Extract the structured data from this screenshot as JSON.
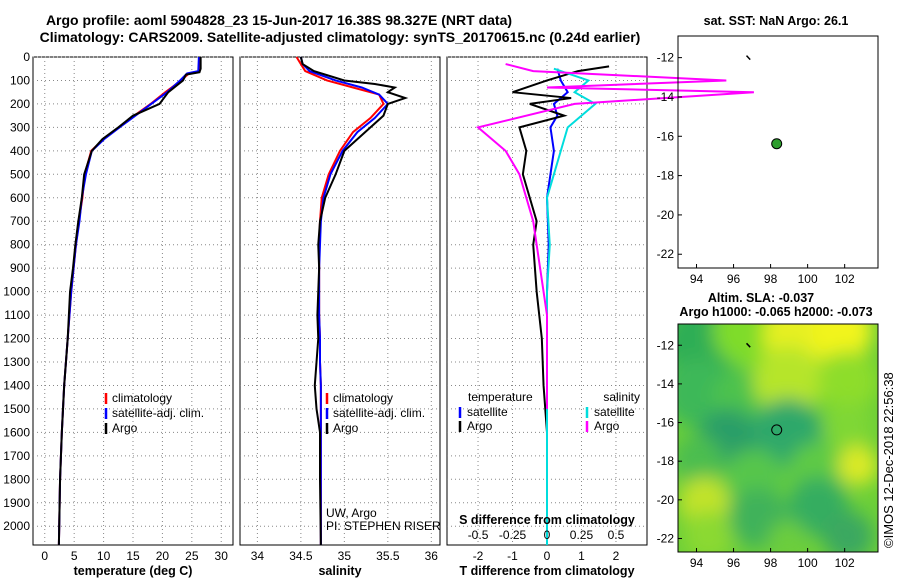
{
  "header": {
    "title_line1": "Argo profile: aoml 5904828_23 15-Jun-2017 16.38S 98.327E (NRT data)",
    "title_line2": "Climatology: CARS2009. Satellite-adjusted climatology: synTS_20170615.nc (0.24d earlier)"
  },
  "depth_ticks": [
    "0",
    "100",
    "200",
    "300",
    "400",
    "500",
    "600",
    "700",
    "800",
    "900",
    "1000",
    "1100",
    "1200",
    "1300",
    "1400",
    "1500",
    "1600",
    "1700",
    "1800",
    "1900",
    "2000"
  ],
  "colors": {
    "climatology": "#ff0000",
    "satellite": "#0000ff",
    "argo": "#000000",
    "sat_sal": "#00dddd",
    "argo_sal": "#ff00ff",
    "marker": "#2e9e2e"
  },
  "chart_data": [
    {
      "type": "line",
      "id": "temperature",
      "xlabel": "temperature (deg C)",
      "xticks": [
        "0",
        "5",
        "10",
        "15",
        "20",
        "25",
        "30"
      ],
      "xlim": [
        -2,
        32
      ],
      "ylim": [
        2080,
        0
      ],
      "grid": true,
      "legend": {
        "placement": "bottom-right",
        "items": [
          {
            "label": "climatology",
            "color": "#ff0000"
          },
          {
            "label": "satellite-adj. clim.",
            "color": "#0000ff"
          },
          {
            "label": "Argo",
            "color": "#000000"
          }
        ]
      },
      "series": [
        {
          "name": "climatology",
          "color": "#ff0000",
          "x": [
            26.4,
            26.3,
            24.5,
            23.2,
            20.5,
            18.0,
            15.2,
            12.6,
            10.0,
            7.9,
            6.8,
            6.4,
            5.8,
            5.3,
            4.9,
            4.5,
            4.2,
            3.9,
            3.6,
            3.3,
            3.1,
            2.9,
            2.6,
            2.4
          ],
          "y": [
            0,
            60,
            70,
            100,
            150,
            200,
            250,
            300,
            350,
            400,
            500,
            600,
            700,
            800,
            900,
            1000,
            1100,
            1200,
            1300,
            1400,
            1500,
            1600,
            1800,
            2080
          ]
        },
        {
          "name": "satellite-adj. clim.",
          "color": "#0000ff",
          "x": [
            26.2,
            26.1,
            24.2,
            23.0,
            20.8,
            18.1,
            15.4,
            12.7,
            10.1,
            8.0,
            7.0,
            6.3,
            5.9,
            5.3,
            4.9,
            4.5,
            4.2,
            3.9,
            3.6,
            3.3,
            3.1,
            2.9,
            2.6,
            2.4
          ],
          "y": [
            0,
            60,
            70,
            100,
            150,
            200,
            250,
            300,
            350,
            400,
            500,
            600,
            700,
            800,
            900,
            1000,
            1100,
            1200,
            1300,
            1400,
            1500,
            1600,
            1800,
            2080
          ]
        },
        {
          "name": "Argo",
          "color": "#000000",
          "x": [
            26.5,
            26.5,
            26.3,
            24.0,
            23.5,
            21.0,
            19.5,
            15.0,
            12.5,
            9.8,
            8.0,
            6.7,
            6.3,
            5.7,
            5.2,
            4.8,
            4.3,
            4.1,
            3.9,
            3.6,
            3.3,
            3.1,
            2.9,
            2.6,
            2.4
          ],
          "y": [
            0,
            50,
            65,
            75,
            100,
            150,
            200,
            250,
            300,
            350,
            400,
            500,
            600,
            700,
            800,
            900,
            1000,
            1100,
            1200,
            1300,
            1400,
            1500,
            1600,
            1800,
            2080
          ]
        }
      ]
    },
    {
      "type": "line",
      "id": "salinity",
      "xlabel": "salinity",
      "xticks": [
        "34",
        "34.5",
        "35",
        "35.5",
        "36"
      ],
      "xlim": [
        33.8,
        36.1
      ],
      "ylim": [
        2080,
        0
      ],
      "grid": true,
      "legend": {
        "placement": "bottom-right",
        "items": [
          {
            "label": "climatology",
            "color": "#ff0000"
          },
          {
            "label": "satellite-adj. clim.",
            "color": "#0000ff"
          },
          {
            "label": "Argo",
            "color": "#000000"
          }
        ]
      },
      "annotations": [
        "UW, Argo",
        "PI: STEPHEN RISER"
      ],
      "series": [
        {
          "name": "climatology",
          "color": "#ff0000",
          "x": [
            34.45,
            34.5,
            34.55,
            34.8,
            35.1,
            35.4,
            35.45,
            35.3,
            35.1,
            34.95,
            34.82,
            34.74,
            34.72,
            34.71,
            34.71,
            34.71,
            34.71,
            34.72,
            34.72,
            34.73,
            34.73,
            34.73,
            34.73,
            34.73
          ],
          "y": [
            0,
            30,
            60,
            100,
            130,
            160,
            200,
            260,
            320,
            400,
            500,
            600,
            700,
            800,
            900,
            1000,
            1100,
            1200,
            1300,
            1400,
            1500,
            1600,
            1800,
            2080
          ]
        },
        {
          "name": "satellite-adj. clim.",
          "color": "#0000ff",
          "x": [
            34.5,
            34.52,
            34.6,
            34.9,
            35.2,
            35.4,
            35.5,
            35.35,
            35.15,
            34.98,
            34.84,
            34.76,
            34.73,
            34.72,
            34.71,
            34.71,
            34.71,
            34.72,
            34.72,
            34.73,
            34.73,
            34.73,
            34.73,
            34.73
          ],
          "y": [
            0,
            30,
            60,
            100,
            130,
            160,
            200,
            260,
            320,
            400,
            500,
            600,
            700,
            800,
            900,
            1000,
            1100,
            1200,
            1300,
            1400,
            1500,
            1600,
            1800,
            2080
          ]
        },
        {
          "name": "Argo",
          "color": "#000000",
          "x": [
            34.5,
            34.52,
            34.65,
            35.0,
            35.35,
            35.58,
            35.5,
            35.7,
            35.5,
            35.45,
            35.3,
            35.0,
            34.9,
            34.78,
            34.72,
            34.7,
            34.71,
            34.7,
            34.69,
            34.7,
            34.68,
            34.66,
            34.68,
            34.72,
            34.72,
            34.73
          ],
          "y": [
            0,
            30,
            60,
            100,
            115,
            130,
            150,
            175,
            200,
            250,
            300,
            400,
            500,
            600,
            700,
            800,
            900,
            1000,
            1100,
            1200,
            1300,
            1400,
            1500,
            1600,
            1800,
            2080
          ]
        }
      ]
    },
    {
      "type": "line",
      "id": "differences",
      "xlabel": "T difference from climatology",
      "annotation_top_axis": "S difference from climatology",
      "xticks_T": [
        "-2",
        "-1",
        "0",
        "1",
        "2"
      ],
      "xticks_S": [
        "-0.5",
        "-0.25",
        "0",
        "0.25",
        "0.5"
      ],
      "xlim": [
        -2.9,
        2.9
      ],
      "ylim": [
        2080,
        0
      ],
      "grid": true,
      "legend_left": {
        "title": "temperature",
        "items": [
          {
            "label": "satellite",
            "color": "#0000ff"
          },
          {
            "label": "Argo",
            "color": "#000000"
          }
        ]
      },
      "legend_right": {
        "title": "salinity",
        "items": [
          {
            "label": "satellite",
            "color": "#00dddd"
          },
          {
            "label": "Argo",
            "color": "#ff00ff"
          }
        ]
      },
      "series": [
        {
          "name": "T satellite",
          "color": "#0000ff",
          "x": [
            0.3,
            0.4,
            0.6,
            0.2,
            0.3,
            0.1,
            0.2,
            0.1,
            0.0,
            0.05,
            0.0,
            0.0,
            0.0,
            0.0,
            0.0,
            0.0,
            0.0,
            0.0
          ],
          "y": [
            50,
            100,
            150,
            200,
            250,
            300,
            400,
            500,
            600,
            800,
            1000,
            1200,
            1400,
            1600,
            1700,
            1800,
            1900,
            2080
          ]
        },
        {
          "name": "T Argo",
          "color": "#000000",
          "x": [
            1.8,
            0.9,
            0.0,
            -1.0,
            0.7,
            -0.5,
            0.5,
            -0.8,
            -0.6,
            -0.7,
            -0.5,
            -0.3,
            -0.4,
            -0.3,
            -0.15,
            -0.1,
            0.0,
            0.0,
            0.0
          ],
          "y": [
            40,
            60,
            100,
            150,
            175,
            200,
            250,
            300,
            400,
            500,
            600,
            700,
            800,
            1000,
            1200,
            1400,
            1600,
            1800,
            2080
          ]
        },
        {
          "name": "S satellite",
          "color": "#00dddd",
          "x": [
            0.05,
            0.3,
            0.2,
            0.35,
            0.15,
            0.1,
            0.05,
            0.0,
            0.02,
            0.0,
            0.0,
            0.0,
            0.0,
            0.0
          ],
          "y": [
            50,
            100,
            150,
            200,
            300,
            400,
            500,
            600,
            800,
            1000,
            1200,
            1400,
            1600,
            2080
          ]
        },
        {
          "name": "S Argo",
          "color": "#ff00ff",
          "x": [
            -0.3,
            -0.1,
            1.3,
            0.0,
            1.5,
            0.2,
            -0.5,
            -0.3,
            -0.2,
            -0.1,
            -0.05,
            0.0,
            0.0,
            0.0
          ],
          "y": [
            30,
            60,
            100,
            130,
            150,
            200,
            300,
            400,
            500,
            700,
            900,
            1100,
            1300,
            1500
          ]
        }
      ]
    },
    {
      "type": "scatter",
      "id": "sst-map",
      "title": "sat. SST: NaN Argo: 26.1",
      "xticks": [
        "94",
        "96",
        "98",
        "100",
        "102"
      ],
      "yticks": [
        "-12",
        "-14",
        "-16",
        "-18",
        "-20",
        "-22"
      ],
      "xlim": [
        93.0,
        103.8
      ],
      "ylim": [
        -22.7,
        -10.9
      ],
      "points": [
        {
          "x": 98.33,
          "y": -16.38,
          "color": "#2e9e2e",
          "label": "Argo"
        }
      ],
      "track": [
        [
          96.7,
          -11.9
        ],
        [
          96.9,
          -12.1
        ]
      ]
    },
    {
      "type": "heatmap",
      "id": "sla-map",
      "title": "Altim. SLA: -0.037",
      "subtitle": "Argo h1000: -0.065 h2000: -0.073",
      "xticks": [
        "94",
        "96",
        "98",
        "100",
        "102"
      ],
      "yticks": [
        "-12",
        "-14",
        "-16",
        "-18",
        "-20",
        "-22"
      ],
      "xlim": [
        93.0,
        103.8
      ],
      "ylim": [
        -22.7,
        -10.9
      ],
      "points": [
        {
          "x": 98.33,
          "y": -16.38,
          "label": "Argo"
        }
      ],
      "track": [
        [
          96.7,
          -11.9
        ],
        [
          96.9,
          -12.1
        ]
      ]
    }
  ],
  "footer": {
    "credit": "©IMOS 12-Dec-2018 22:56:38"
  }
}
